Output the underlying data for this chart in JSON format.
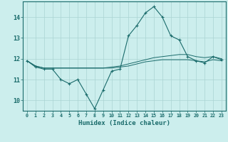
{
  "xlabel": "Humidex (Indice chaleur)",
  "background_color": "#cceeed",
  "grid_color": "#aad4d2",
  "line_color": "#1a6b6b",
  "x_values": [
    0,
    1,
    2,
    3,
    4,
    5,
    6,
    7,
    8,
    9,
    10,
    11,
    12,
    13,
    14,
    15,
    16,
    17,
    18,
    19,
    20,
    21,
    22,
    23
  ],
  "series1": [
    11.9,
    11.6,
    11.5,
    11.5,
    11.0,
    10.8,
    11.0,
    10.3,
    9.6,
    10.5,
    11.4,
    11.5,
    13.1,
    13.6,
    14.2,
    14.5,
    14.0,
    13.1,
    12.9,
    12.1,
    11.9,
    11.8,
    12.1,
    11.95
  ],
  "series2": [
    11.9,
    11.65,
    11.55,
    11.55,
    11.55,
    11.55,
    11.55,
    11.55,
    11.55,
    11.55,
    11.6,
    11.65,
    11.75,
    11.85,
    11.95,
    12.05,
    12.1,
    12.15,
    12.2,
    12.2,
    12.1,
    12.05,
    12.1,
    12.0
  ],
  "series3": [
    11.9,
    11.65,
    11.55,
    11.55,
    11.55,
    11.55,
    11.55,
    11.55,
    11.55,
    11.55,
    11.55,
    11.6,
    11.65,
    11.75,
    11.85,
    11.9,
    11.95,
    11.95,
    11.95,
    11.95,
    11.9,
    11.85,
    11.95,
    11.9
  ],
  "ylim": [
    9.5,
    14.75
  ],
  "yticks": [
    10,
    11,
    12,
    13,
    14
  ],
  "xtick_labels": [
    "0",
    "1",
    "2",
    "3",
    "4",
    "5",
    "6",
    "7",
    "8",
    "9",
    "10",
    "11",
    "12",
    "13",
    "14",
    "15",
    "16",
    "17",
    "18",
    "19",
    "20",
    "21",
    "22",
    "23"
  ]
}
